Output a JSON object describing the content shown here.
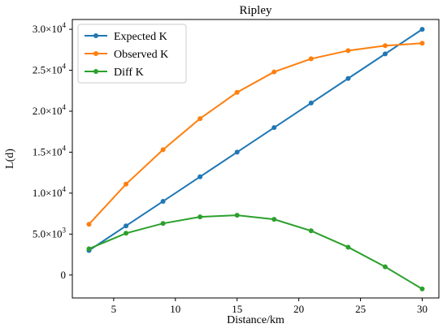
{
  "chart_data": {
    "type": "line",
    "title": "Ripley",
    "xlabel": "Distance/km",
    "ylabel": "L(d)",
    "xlim": [
      1.65,
      31.35
    ],
    "ylim": [
      -2800,
      31200
    ],
    "xticks": [
      5,
      10,
      15,
      20,
      25,
      30
    ],
    "yticks": [
      {
        "value": 0,
        "mantissa": "0",
        "exp": ""
      },
      {
        "value": 5000,
        "mantissa": "5.0×10",
        "exp": "3"
      },
      {
        "value": 10000,
        "mantissa": "1.0×10",
        "exp": "4"
      },
      {
        "value": 15000,
        "mantissa": "1.5×10",
        "exp": "4"
      },
      {
        "value": 20000,
        "mantissa": "2.0×10",
        "exp": "4"
      },
      {
        "value": 25000,
        "mantissa": "2.5×10",
        "exp": "4"
      },
      {
        "value": 30000,
        "mantissa": "3.0×10",
        "exp": "4"
      }
    ],
    "grid": false,
    "legend_position": "top-left",
    "x": [
      3,
      6,
      9,
      12,
      15,
      18,
      21,
      24,
      27,
      30
    ],
    "series": [
      {
        "name": "Expected K",
        "color": "#1f77b4",
        "values": [
          3000,
          6000,
          9000,
          12000,
          15000,
          18000,
          21000,
          24000,
          27000,
          30000
        ]
      },
      {
        "name": "Observed K",
        "color": "#ff7f0e",
        "values": [
          6200,
          11100,
          15300,
          19100,
          22300,
          24800,
          26400,
          27400,
          28000,
          28300
        ]
      },
      {
        "name": "Diff K",
        "color": "#2ca02c",
        "values": [
          3200,
          5100,
          6300,
          7100,
          7300,
          6800,
          5400,
          3400,
          1000,
          -1700
        ]
      }
    ]
  }
}
